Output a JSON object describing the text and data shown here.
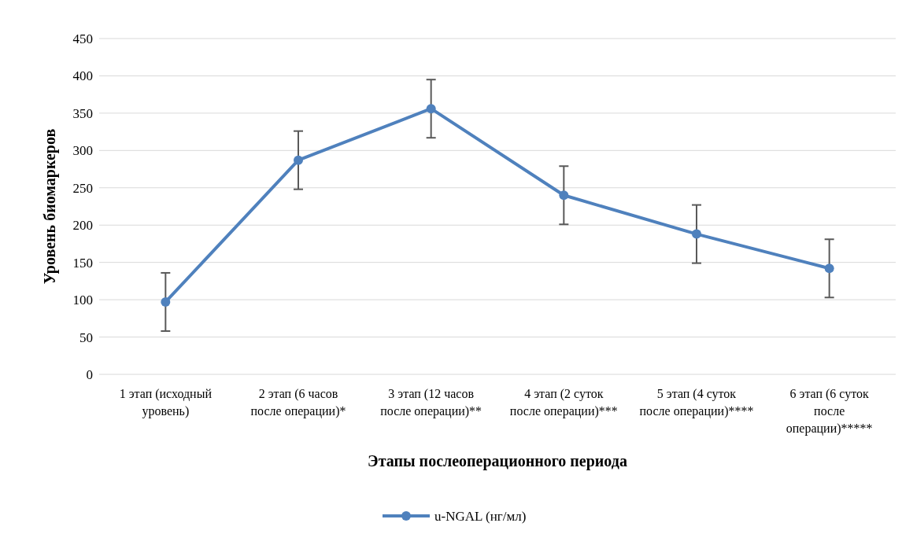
{
  "chart_data": {
    "type": "line",
    "xlabel": "Этапы послеоперационного периода",
    "ylabel": "Уровень биомаркеров",
    "categories": [
      "1 этап (исходный уровень)",
      "2 этап (6 часов после операции)*",
      "3 этап (12 часов после операции)**",
      "4 этап (2 суток после операции)***",
      "5 этап (4 суток после операции)****",
      "6 этап (6 суток после операции)*****"
    ],
    "series": [
      {
        "name": "u-NGAL (нг/мл)",
        "color": "#4f81bd",
        "values": [
          97,
          287,
          356,
          240,
          188,
          142
        ],
        "errors": [
          39,
          39,
          39,
          39,
          39,
          39
        ]
      }
    ],
    "ylim": [
      0,
      450
    ],
    "yticks": [
      0,
      50,
      100,
      150,
      200,
      250,
      300,
      350,
      400,
      450
    ],
    "grid": "y",
    "legend": "bottom",
    "marker": "circle",
    "line_style": "solid"
  }
}
